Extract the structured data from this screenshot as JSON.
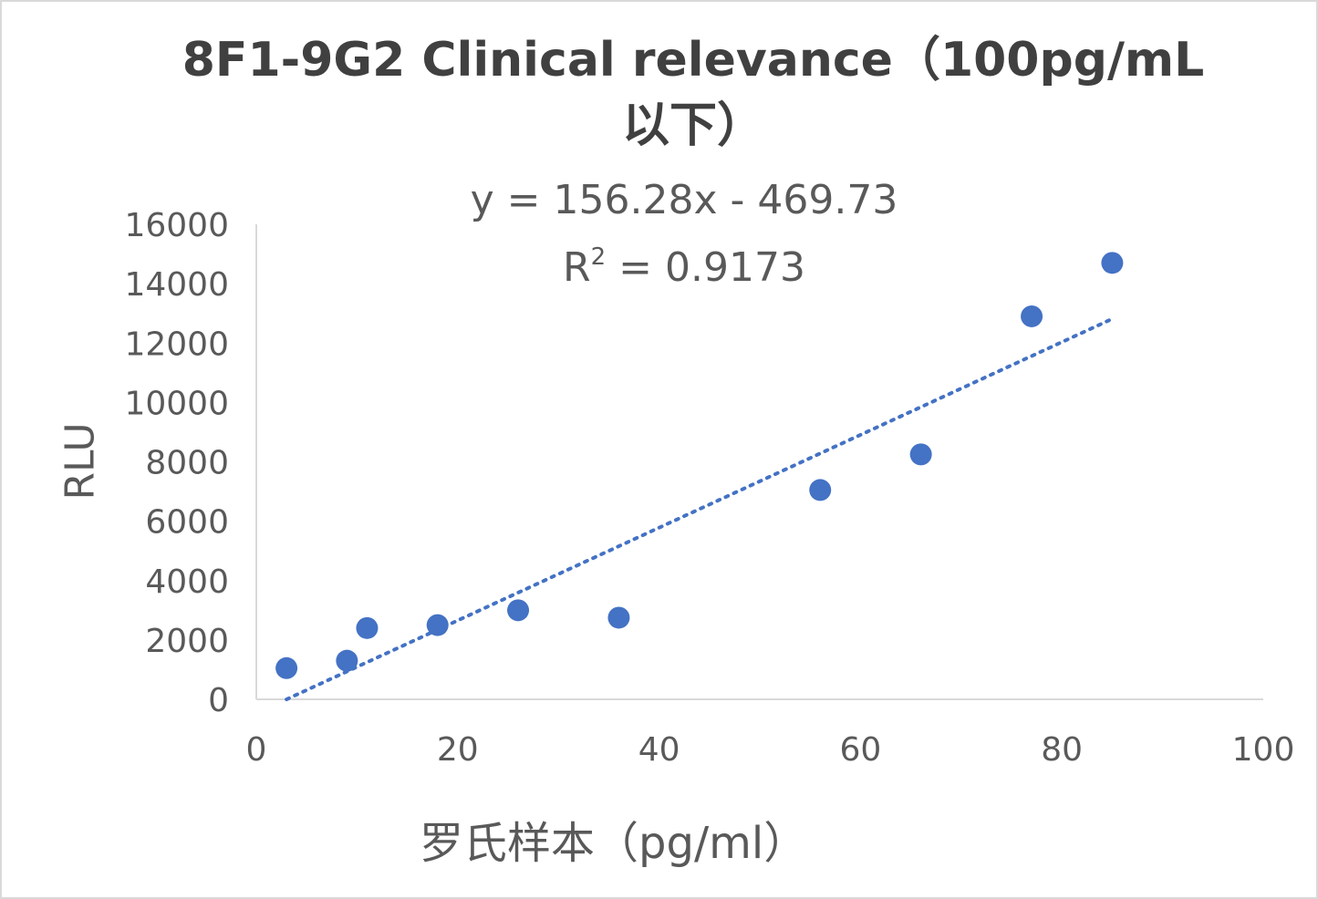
{
  "chart_data": {
    "type": "scatter",
    "title_line1": "8F1-9G2 Clinical relevance（100pg/mL",
    "title_line2": "以下）",
    "xlabel": "罗氏样本（pg/ml）",
    "ylabel": "RLU",
    "xlim": [
      0,
      100
    ],
    "ylim": [
      0,
      16000
    ],
    "x_ticks": [
      "0",
      "20",
      "40",
      "60",
      "80",
      "100"
    ],
    "y_ticks": [
      "0",
      "2000",
      "4000",
      "6000",
      "8000",
      "10000",
      "12000",
      "14000",
      "16000"
    ],
    "grid": false,
    "legend": "none",
    "series": [
      {
        "color": "#4472c4",
        "points": [
          {
            "x": 3,
            "y": 1050
          },
          {
            "x": 9,
            "y": 1300
          },
          {
            "x": 11,
            "y": 2400
          },
          {
            "x": 18,
            "y": 2500
          },
          {
            "x": 26,
            "y": 3000
          },
          {
            "x": 36,
            "y": 2750
          },
          {
            "x": 56,
            "y": 7050
          },
          {
            "x": 66,
            "y": 8250
          },
          {
            "x": 77,
            "y": 12900
          },
          {
            "x": 85,
            "y": 14700
          }
        ]
      }
    ],
    "trendline": {
      "type": "linear",
      "style": "dotted",
      "color": "#4472c4",
      "slope": 156.28,
      "intercept": -469.73,
      "x_range": [
        3,
        85
      ],
      "equation_label": "y = 156.28x - 469.73",
      "r2_prefix": "R",
      "r2_sup": "2",
      "r2_value": " = 0.9173"
    }
  }
}
